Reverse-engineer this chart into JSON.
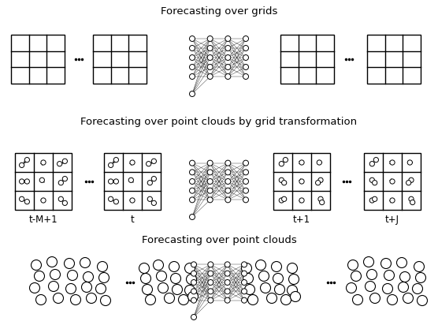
{
  "title_row1": "Forecasting over grids",
  "title_row2": "Forecasting over point clouds by grid transformation",
  "title_row3": "Forecasting over point clouds",
  "label_tM1": "t-M+1",
  "label_t": "t",
  "label_t1": "t+1",
  "label_tJ": "t+J",
  "bg_color": "#ffffff",
  "line_color": "#000000",
  "figw": 5.56,
  "figh": 4.12,
  "dpi": 100
}
